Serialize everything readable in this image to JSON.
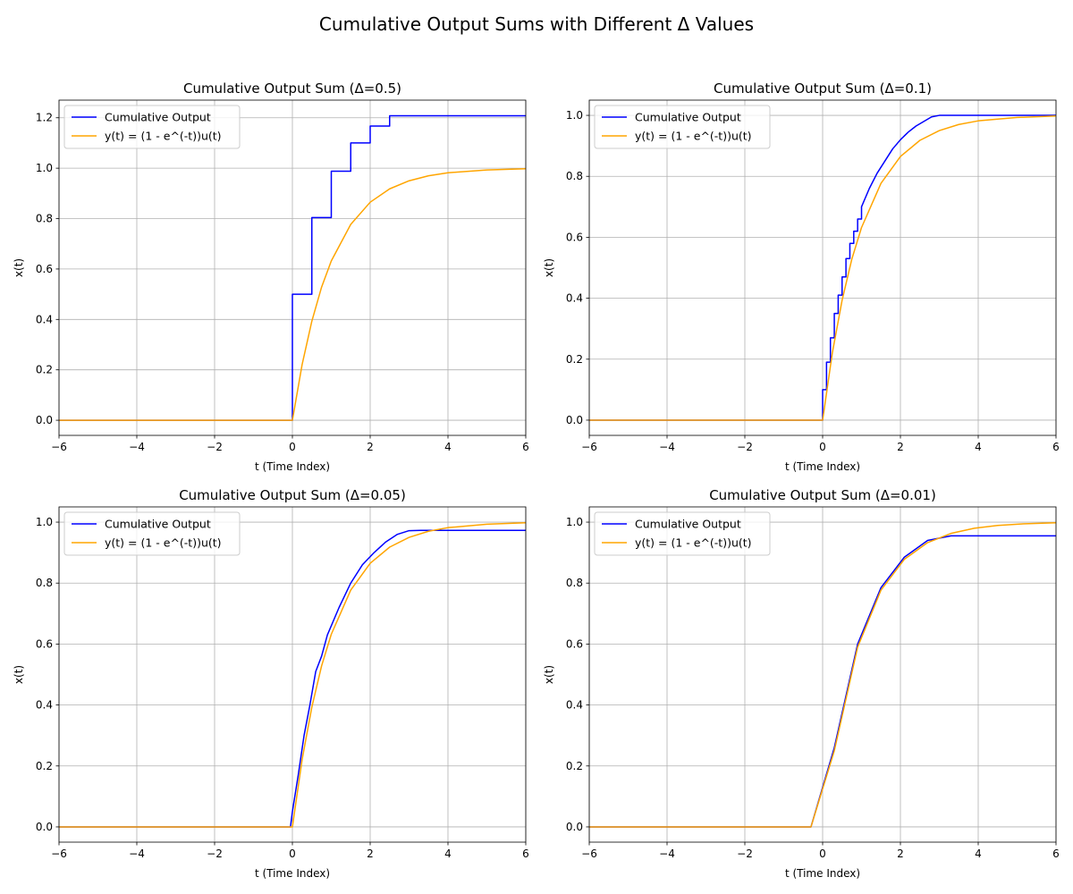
{
  "figure": {
    "title": "Cumulative Output Sums with Different Δ Values"
  },
  "colors": {
    "cumulative": "#0000ff",
    "analytic": "#ffa500",
    "grid": "#b0b0b0"
  },
  "chart_data": [
    {
      "type": "line",
      "title": "Cumulative Output Sum (Δ=0.5)",
      "xlabel": "t (Time Index)",
      "ylabel": "x(t)",
      "xlim": [
        -6,
        6
      ],
      "ylim": [
        -0.06,
        1.27
      ],
      "xticks": [
        -6,
        -4,
        -2,
        0,
        2,
        4,
        6
      ],
      "yticks": [
        0.0,
        0.2,
        0.4,
        0.6,
        0.8,
        1.0,
        1.2
      ],
      "ytick_labels": [
        "0.0",
        "0.2",
        "0.4",
        "0.6",
        "0.8",
        "1.0",
        "1.2"
      ],
      "grid": true,
      "legend_position": "upper-left",
      "series": [
        {
          "name": "Cumulative Output",
          "x": [
            -6,
            0,
            0,
            0.5,
            0.5,
            1.0,
            1.0,
            1.5,
            1.5,
            2.0,
            2.0,
            2.5,
            2.5,
            6
          ],
          "y": [
            0,
            0,
            0.5,
            0.5,
            0.804,
            0.804,
            0.988,
            0.988,
            1.1,
            1.1,
            1.167,
            1.167,
            1.208,
            1.208
          ]
        },
        {
          "name": "y(t) = (1 - e^(-t))u(t)",
          "x": [
            -6,
            0,
            0.25,
            0.5,
            0.75,
            1.0,
            1.5,
            2.0,
            2.5,
            3.0,
            3.5,
            4.0,
            5.0,
            6.0
          ],
          "y": [
            0,
            0,
            0.221,
            0.393,
            0.528,
            0.632,
            0.777,
            0.865,
            0.918,
            0.95,
            0.97,
            0.982,
            0.993,
            0.998
          ]
        }
      ]
    },
    {
      "type": "line",
      "title": "Cumulative Output Sum (Δ=0.1)",
      "xlabel": "t (Time Index)",
      "ylabel": "x(t)",
      "xlim": [
        -6,
        6
      ],
      "ylim": [
        -0.05,
        1.05
      ],
      "xticks": [
        -6,
        -4,
        -2,
        0,
        2,
        4,
        6
      ],
      "yticks": [
        0.0,
        0.2,
        0.4,
        0.6,
        0.8,
        1.0
      ],
      "ytick_labels": [
        "0.0",
        "0.2",
        "0.4",
        "0.6",
        "0.8",
        "1.0"
      ],
      "grid": true,
      "legend_position": "upper-left",
      "series": [
        {
          "name": "Cumulative Output",
          "x": [
            -6,
            0,
            0,
            0.1,
            0.1,
            0.2,
            0.2,
            0.3,
            0.3,
            0.4,
            0.4,
            0.5,
            0.5,
            0.6,
            0.6,
            0.7,
            0.7,
            0.8,
            0.8,
            0.9,
            0.9,
            1.0,
            1.0,
            1.2,
            1.4,
            1.6,
            1.8,
            2.0,
            2.2,
            2.4,
            2.6,
            2.8,
            3.0,
            6
          ],
          "y": [
            0,
            0,
            0.1,
            0.1,
            0.19,
            0.19,
            0.27,
            0.27,
            0.35,
            0.35,
            0.41,
            0.41,
            0.47,
            0.47,
            0.53,
            0.53,
            0.58,
            0.58,
            0.62,
            0.62,
            0.66,
            0.66,
            0.7,
            0.76,
            0.81,
            0.85,
            0.89,
            0.92,
            0.945,
            0.965,
            0.98,
            0.995,
            1.0,
            1.0
          ]
        },
        {
          "name": "y(t) = (1 - e^(-t))u(t)",
          "x": [
            -6,
            0,
            0.25,
            0.5,
            0.75,
            1.0,
            1.5,
            2.0,
            2.5,
            3.0,
            3.5,
            4.0,
            5.0,
            6.0
          ],
          "y": [
            0,
            0,
            0.221,
            0.393,
            0.528,
            0.632,
            0.777,
            0.865,
            0.918,
            0.95,
            0.97,
            0.982,
            0.993,
            0.998
          ]
        }
      ]
    },
    {
      "type": "line",
      "title": "Cumulative Output Sum (Δ=0.05)",
      "xlabel": "t (Time Index)",
      "ylabel": "x(t)",
      "xlim": [
        -6,
        6
      ],
      "ylim": [
        -0.05,
        1.05
      ],
      "xticks": [
        -6,
        -4,
        -2,
        0,
        2,
        4,
        6
      ],
      "yticks": [
        0.0,
        0.2,
        0.4,
        0.6,
        0.8,
        1.0
      ],
      "ytick_labels": [
        "0.0",
        "0.2",
        "0.4",
        "0.6",
        "0.8",
        "1.0"
      ],
      "grid": true,
      "legend_position": "upper-left",
      "series": [
        {
          "name": "Cumulative Output",
          "x": [
            -6,
            -0.05,
            0.0,
            0.15,
            0.3,
            0.45,
            0.6,
            0.75,
            0.9,
            1.2,
            1.5,
            1.8,
            2.1,
            2.4,
            2.7,
            3.0,
            3.3,
            6
          ],
          "y": [
            0,
            0,
            0.05,
            0.17,
            0.3,
            0.4,
            0.51,
            0.56,
            0.63,
            0.72,
            0.8,
            0.86,
            0.9,
            0.935,
            0.96,
            0.972,
            0.973,
            0.973
          ]
        },
        {
          "name": "y(t) = (1 - e^(-t))u(t)",
          "x": [
            -6,
            0,
            0.25,
            0.5,
            0.75,
            1.0,
            1.5,
            2.0,
            2.5,
            3.0,
            3.5,
            4.0,
            5.0,
            6.0
          ],
          "y": [
            0,
            0,
            0.221,
            0.393,
            0.528,
            0.632,
            0.777,
            0.865,
            0.918,
            0.95,
            0.97,
            0.982,
            0.993,
            0.998
          ]
        }
      ]
    },
    {
      "type": "line",
      "title": "Cumulative Output Sum (Δ=0.01)",
      "xlabel": "t (Time Index)",
      "ylabel": "x(t)",
      "xlim": [
        -6,
        6
      ],
      "ylim": [
        -0.05,
        1.05
      ],
      "xticks": [
        -6,
        -4,
        -2,
        0,
        2,
        4,
        6
      ],
      "yticks": [
        0.0,
        0.2,
        0.4,
        0.6,
        0.8,
        1.0
      ],
      "ytick_labels": [
        "0.0",
        "0.2",
        "0.4",
        "0.6",
        "0.8",
        "1.0"
      ],
      "grid": true,
      "legend_position": "upper-left",
      "series": [
        {
          "name": "Cumulative Output",
          "x": [
            -6,
            -0.3,
            0.3,
            0.9,
            1.5,
            2.1,
            2.7,
            3.3,
            6
          ],
          "y": [
            0,
            0,
            0.26,
            0.6,
            0.785,
            0.885,
            0.94,
            0.955,
            0.955
          ]
        },
        {
          "name": "y(t) = (1 - e^(-t))u(t)",
          "x": [
            -6,
            -0.3,
            0.3,
            0.9,
            1.5,
            2.1,
            2.7,
            3.3,
            3.9,
            4.5,
            5.1,
            6.0
          ],
          "y": [
            0,
            0,
            0.25,
            0.59,
            0.777,
            0.878,
            0.933,
            0.963,
            0.98,
            0.989,
            0.994,
            0.998
          ]
        }
      ]
    }
  ]
}
